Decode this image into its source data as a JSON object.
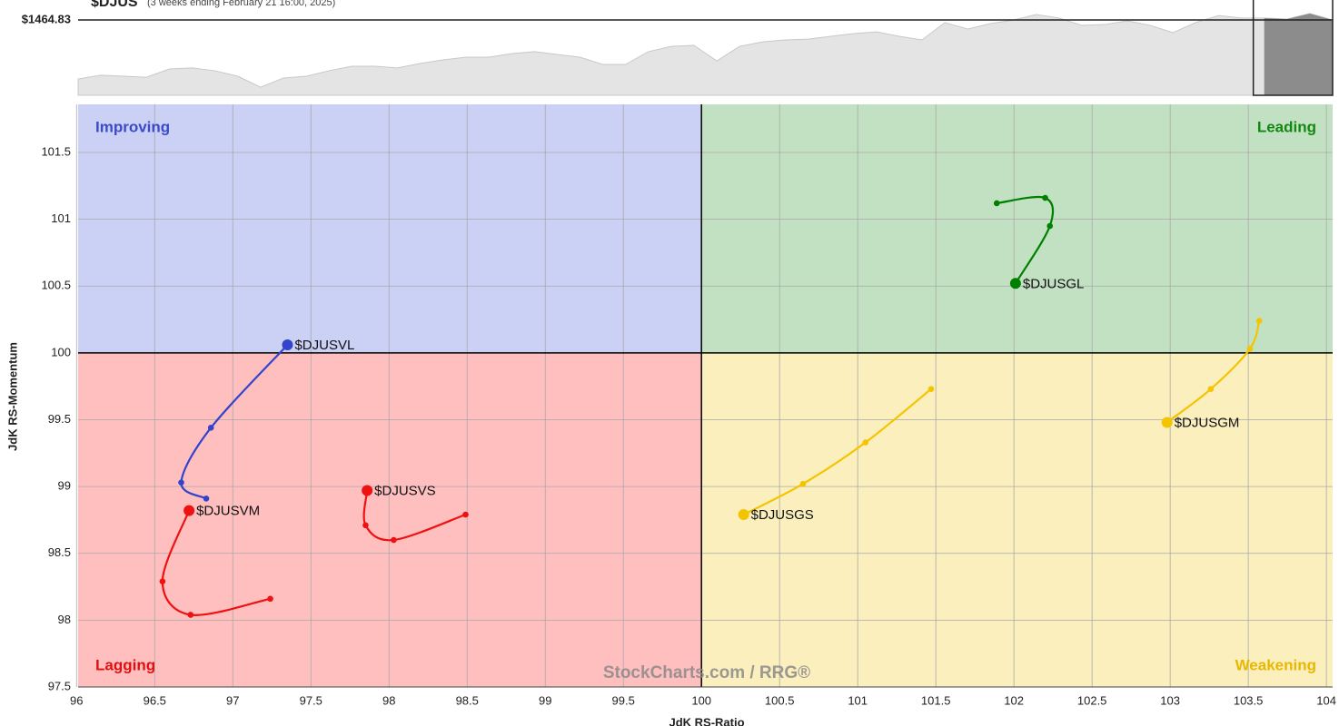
{
  "chart_data": [
    {
      "type": "area",
      "title": "$DJUS",
      "subtitle": "(3 weeks ending February 21 16:00, 2025)",
      "color": "#e4e4e4",
      "highlight_color": "#8c8c8c",
      "values": [
        1434.8,
        1436.7,
        1436.2,
        1435.7,
        1439.9,
        1440.4,
        1439.0,
        1436.2,
        1430.6,
        1435.3,
        1436.2,
        1439.0,
        1441.3,
        1441.3,
        1440.4,
        1442.7,
        1444.5,
        1445.9,
        1445.9,
        1447.7,
        1448.7,
        1447.3,
        1445.9,
        1442.2,
        1442.2,
        1448.7,
        1451.4,
        1451.9,
        1444.0,
        1451.4,
        1453.7,
        1454.7,
        1455.1,
        1456.5,
        1457.9,
        1458.8,
        1456.5,
        1454.7,
        1463.5,
        1460.2,
        1463.0,
        1464.8,
        1467.6,
        1465.8,
        1462.1,
        1462.5,
        1464.4,
        1462.1,
        1458.4,
        1463.5,
        1467.1,
        1465.8,
        1465.8,
        1465.3,
        1468.1,
        1464.83
      ],
      "ylim": [
        1426.5,
        1475
      ],
      "yticks": [
        {
          "value": 1464.83,
          "label": "$1464.83"
        }
      ]
    },
    {
      "type": "rrg",
      "x_label": "JdK RS-Ratio",
      "y_label": "JdK RS-Momentum",
      "watermark": "StockCharts.com / RRG®",
      "xlim": [
        96.01,
        104.04
      ],
      "ylim": [
        97.5,
        101.86
      ],
      "xticks": [
        96,
        96.5,
        97,
        97.5,
        98,
        98.5,
        99,
        99.5,
        100,
        100.5,
        101,
        101.5,
        102,
        102.5,
        103,
        103.5,
        104
      ],
      "yticks": [
        97.5,
        98,
        98.5,
        99,
        99.5,
        100,
        100.5,
        101,
        101.5
      ],
      "center_x": 100,
      "center_y": 100,
      "grid": true,
      "quadrants": [
        {
          "label": "Improving",
          "fill": "#cbd0f5",
          "color": "#3b4bc8"
        },
        {
          "label": "Leading",
          "fill": "#c2e1c2",
          "color": "#118811"
        },
        {
          "label": "Lagging",
          "fill": "#ffbfbf",
          "color": "#e01010"
        },
        {
          "label": "Weakening",
          "fill": "#fbefbd",
          "color": "#e8b800"
        }
      ],
      "series": [
        {
          "name": "$DJUSGL",
          "color": "#008000",
          "x": [
            101.89,
            102.2,
            102.23,
            102.01
          ],
          "values": [
            101.12,
            101.16,
            100.95,
            100.52
          ]
        },
        {
          "name": "$DJUSGM",
          "color": "#f5c400",
          "x": [
            103.57,
            103.51,
            103.26,
            102.98
          ],
          "values": [
            100.24,
            100.03,
            99.73,
            99.48
          ]
        },
        {
          "name": "$DJUSGS",
          "color": "#f5c400",
          "x": [
            101.47,
            101.05,
            100.65,
            100.27
          ],
          "values": [
            99.73,
            99.33,
            99.02,
            98.79
          ]
        },
        {
          "name": "$DJUSVL",
          "color": "#3344cc",
          "x": [
            96.83,
            96.67,
            96.86,
            97.35
          ],
          "values": [
            98.91,
            99.03,
            99.44,
            100.06
          ]
        },
        {
          "name": "$DJUSVM",
          "color": "#ee1111",
          "x": [
            97.24,
            96.73,
            96.55,
            96.72
          ],
          "values": [
            98.16,
            98.04,
            98.29,
            98.82
          ]
        },
        {
          "name": "$DJUSVS",
          "color": "#ee1111",
          "x": [
            98.49,
            98.03,
            97.85,
            97.86
          ],
          "values": [
            98.79,
            98.6,
            98.71,
            98.97
          ]
        }
      ]
    }
  ]
}
